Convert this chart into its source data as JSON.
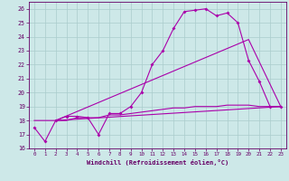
{
  "xlabel": "Windchill (Refroidissement éolien,°C)",
  "bg_color": "#cde8e8",
  "grid_color": "#aacccc",
  "line_color": "#aa00aa",
  "xlim": [
    -0.5,
    23.5
  ],
  "ylim": [
    16,
    26.5
  ],
  "xticks": [
    0,
    1,
    2,
    3,
    4,
    5,
    6,
    7,
    8,
    9,
    10,
    11,
    12,
    13,
    14,
    15,
    16,
    17,
    18,
    19,
    20,
    21,
    22,
    23
  ],
  "yticks": [
    16,
    17,
    18,
    19,
    20,
    21,
    22,
    23,
    24,
    25,
    26
  ],
  "line1_x": [
    0,
    1,
    2,
    3,
    4,
    5,
    6,
    7,
    8,
    9,
    10,
    11,
    12,
    13,
    14,
    15,
    16,
    17,
    18,
    19,
    20,
    21,
    22,
    23
  ],
  "line1_y": [
    17.5,
    16.5,
    18.0,
    18.3,
    18.3,
    18.2,
    17.0,
    18.5,
    18.5,
    19.0,
    20.0,
    22.0,
    23.0,
    24.6,
    25.8,
    25.9,
    26.0,
    25.5,
    25.7,
    25.0,
    22.3,
    20.8,
    19.0,
    19.0
  ],
  "line2_x": [
    0,
    1,
    2,
    3,
    4,
    5,
    6,
    7,
    8,
    9,
    10,
    11,
    12,
    13,
    14,
    15,
    16,
    17,
    18,
    19,
    20,
    21,
    22,
    23
  ],
  "line2_y": [
    18.0,
    18.0,
    18.0,
    18.0,
    18.2,
    18.2,
    18.2,
    18.4,
    18.4,
    18.5,
    18.6,
    18.7,
    18.8,
    18.9,
    18.9,
    19.0,
    19.0,
    19.0,
    19.1,
    19.1,
    19.1,
    19.0,
    19.0,
    19.0
  ],
  "line3_x": [
    2,
    23
  ],
  "line3_y": [
    18.0,
    19.0
  ],
  "line4_x": [
    2,
    20,
    23
  ],
  "line4_y": [
    18.0,
    23.8,
    19.0
  ]
}
